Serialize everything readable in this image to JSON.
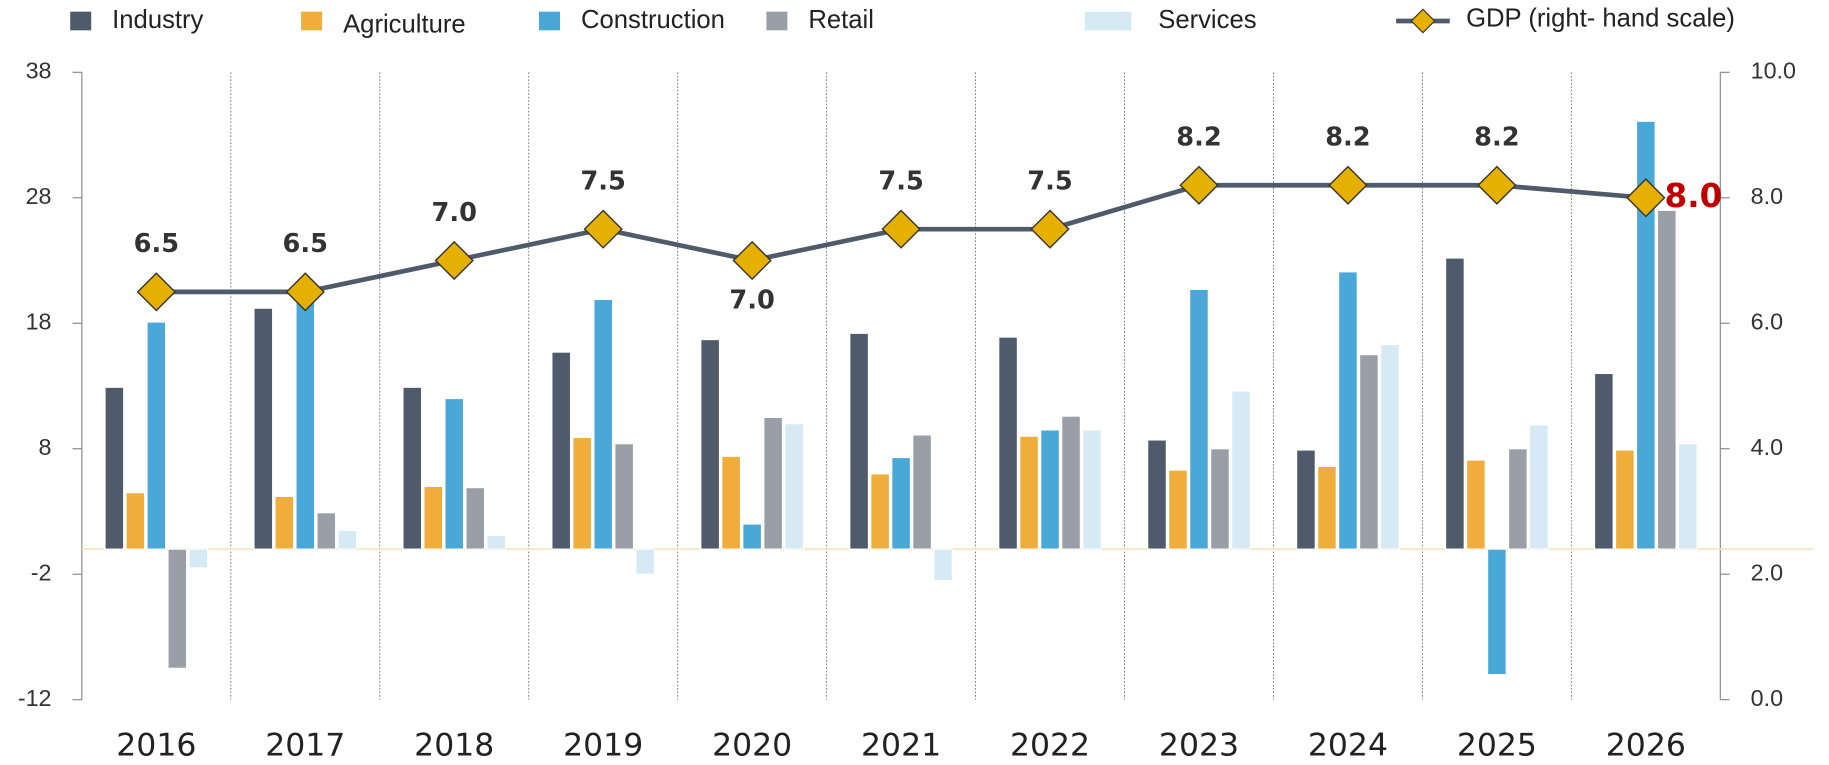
{
  "chart_data": {
    "type": "bar-line",
    "categories": [
      "2016",
      "2017",
      "2018",
      "2019",
      "2020",
      "2021",
      "2022",
      "2023",
      "2024",
      "2025",
      "2026"
    ],
    "series": [
      {
        "name": "Industry",
        "color": "#4f5a6b",
        "values": [
          12.9,
          19.2,
          12.9,
          15.7,
          16.7,
          17.2,
          16.9,
          8.7,
          7.9,
          23.2,
          14.0
        ]
      },
      {
        "name": "Agriculture",
        "color": "#f0ad3c",
        "values": [
          4.5,
          4.2,
          5.0,
          8.9,
          7.4,
          6.0,
          9.0,
          6.3,
          6.6,
          7.1,
          7.9
        ]
      },
      {
        "name": "Construction",
        "color": "#4aa8d8",
        "values": [
          18.1,
          19.8,
          12.0,
          19.9,
          2.0,
          7.3,
          9.5,
          20.7,
          22.1,
          -10.0,
          34.1
        ]
      },
      {
        "name": "Retail",
        "color": "#9a9ea6",
        "values": [
          -9.5,
          2.9,
          4.9,
          8.4,
          10.5,
          9.1,
          10.6,
          8.0,
          15.5,
          8.0,
          27.0
        ]
      },
      {
        "name": "Services",
        "color": "#d6eaf6",
        "values": [
          -1.5,
          1.5,
          1.1,
          -2.0,
          10.0,
          -2.5,
          9.5,
          12.6,
          16.3,
          9.9,
          8.4
        ]
      },
      {
        "name": "GDP (right- hand scale)",
        "color": "#4f5a6b",
        "marker_color": "#e6b000",
        "axis": "y2",
        "type": "line",
        "values": [
          6.5,
          6.5,
          7.0,
          7.5,
          7.0,
          7.5,
          7.5,
          8.2,
          8.2,
          8.2,
          8.0
        ],
        "value_labels": [
          "6.5",
          "6.5",
          "7.0",
          "7.5",
          "7.0",
          "7.5",
          "7.5",
          "8.2",
          "8.2",
          "8.2",
          "8.0"
        ]
      }
    ],
    "ylim": [
      -12,
      38
    ],
    "yticks": [
      -12,
      -2,
      8,
      18,
      28,
      38
    ],
    "y2lim": [
      0,
      10
    ],
    "y2ticks": [
      {
        "value": 0,
        "label": "0.0"
      },
      {
        "value": 2,
        "label": "2.0"
      },
      {
        "value": 4,
        "label": "4.0"
      },
      {
        "value": 6,
        "label": "6.0"
      },
      {
        "value": 8,
        "label": "8.0"
      },
      {
        "value": 10,
        "label": "10.0"
      }
    ],
    "legend": "top"
  }
}
